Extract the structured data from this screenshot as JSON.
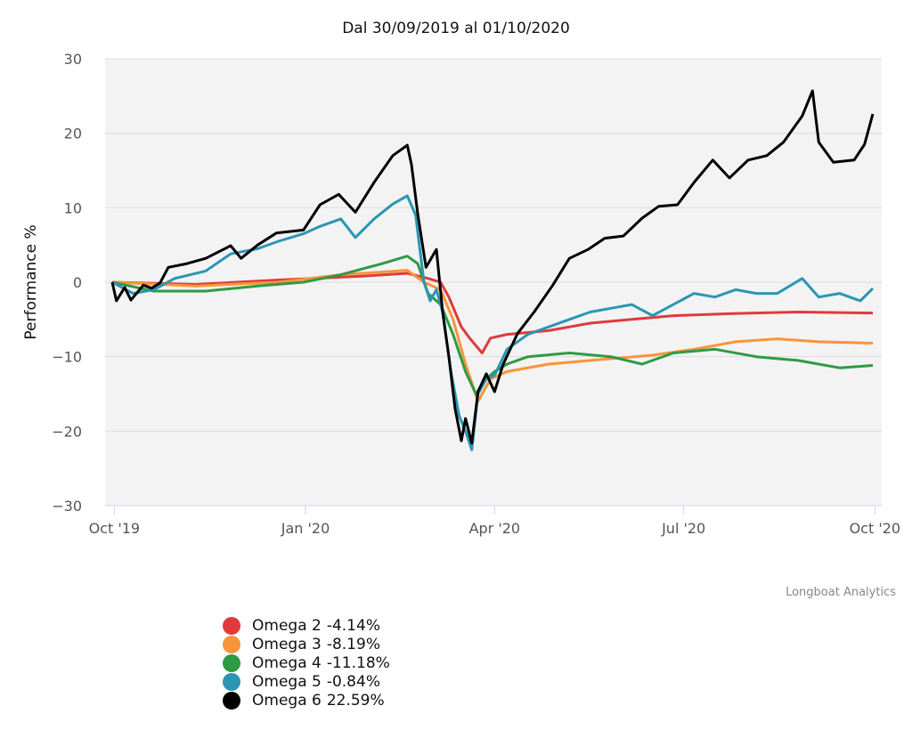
{
  "chart_data": {
    "type": "line",
    "title": "Dal 30/09/2019 al 01/10/2020",
    "xlabel": "",
    "ylabel": "Performance %",
    "x_unit": "days since 30/09/2019",
    "xlim": [
      0,
      367
    ],
    "ylim": [
      -30,
      30
    ],
    "yticks": [
      30,
      20,
      10,
      0,
      -10,
      -20,
      -30
    ],
    "ytick_labels": [
      "30",
      "20",
      "10",
      "0",
      "−10",
      "−20",
      "−30"
    ],
    "xticks": [
      {
        "day": 1,
        "label": "Oct '19"
      },
      {
        "day": 93,
        "label": "Jan '20"
      },
      {
        "day": 184,
        "label": "Apr '20"
      },
      {
        "day": 275,
        "label": "Jul '20"
      },
      {
        "day": 367,
        "label": "Oct '20"
      }
    ],
    "grid": true,
    "legend_position": "bottom-left",
    "credit": "Longboat Analytics",
    "series": [
      {
        "name": "Omega 2",
        "final": "-4.14%",
        "color": "#e03a3e",
        "points": [
          [
            0,
            0
          ],
          [
            40,
            -0.3
          ],
          [
            80,
            0.3
          ],
          [
            120,
            0.8
          ],
          [
            142,
            1.2
          ],
          [
            152,
            0.5
          ],
          [
            158,
            0
          ],
          [
            162,
            -2
          ],
          [
            168,
            -6
          ],
          [
            172,
            -7.5
          ],
          [
            178,
            -9.5
          ],
          [
            182,
            -7.5
          ],
          [
            190,
            -7
          ],
          [
            210,
            -6.5
          ],
          [
            230,
            -5.5
          ],
          [
            250,
            -5
          ],
          [
            270,
            -4.5
          ],
          [
            300,
            -4.2
          ],
          [
            330,
            -4
          ],
          [
            366,
            -4.14
          ]
        ]
      },
      {
        "name": "Omega 3",
        "final": "-8.19%",
        "color": "#f7953a",
        "points": [
          [
            0,
            0
          ],
          [
            40,
            -0.5
          ],
          [
            80,
            0
          ],
          [
            110,
            1
          ],
          [
            142,
            1.6
          ],
          [
            150,
            0
          ],
          [
            158,
            -1
          ],
          [
            164,
            -5
          ],
          [
            170,
            -11
          ],
          [
            176,
            -16
          ],
          [
            182,
            -13
          ],
          [
            190,
            -12
          ],
          [
            210,
            -11
          ],
          [
            230,
            -10.5
          ],
          [
            260,
            -9.8
          ],
          [
            280,
            -9
          ],
          [
            300,
            -8
          ],
          [
            320,
            -7.6
          ],
          [
            340,
            -8
          ],
          [
            366,
            -8.19
          ]
        ]
      },
      {
        "name": "Omega 4",
        "final": "-11.18%",
        "color": "#2e9a44",
        "points": [
          [
            0,
            0
          ],
          [
            20,
            -1.2
          ],
          [
            45,
            -1.2
          ],
          [
            70,
            -0.5
          ],
          [
            92,
            0
          ],
          [
            110,
            1
          ],
          [
            130,
            2.5
          ],
          [
            142,
            3.5
          ],
          [
            147,
            2.5
          ],
          [
            152,
            -1.5
          ],
          [
            158,
            -3
          ],
          [
            164,
            -7
          ],
          [
            170,
            -12
          ],
          [
            175,
            -15
          ],
          [
            180,
            -13
          ],
          [
            184,
            -12
          ],
          [
            190,
            -11
          ],
          [
            200,
            -10
          ],
          [
            220,
            -9.5
          ],
          [
            240,
            -10
          ],
          [
            255,
            -11
          ],
          [
            270,
            -9.5
          ],
          [
            290,
            -9
          ],
          [
            310,
            -10
          ],
          [
            330,
            -10.5
          ],
          [
            350,
            -11.5
          ],
          [
            366,
            -11.18
          ]
        ]
      },
      {
        "name": "Omega 5",
        "final": "-0.84%",
        "color": "#2a96b4",
        "points": [
          [
            0,
            0
          ],
          [
            10,
            -1.5
          ],
          [
            20,
            -1
          ],
          [
            30,
            0.5
          ],
          [
            45,
            1.5
          ],
          [
            57,
            3.8
          ],
          [
            70,
            4.5
          ],
          [
            80,
            5.5
          ],
          [
            92,
            6.5
          ],
          [
            100,
            7.5
          ],
          [
            110,
            8.5
          ],
          [
            117,
            6
          ],
          [
            126,
            8.5
          ],
          [
            135,
            10.5
          ],
          [
            142,
            11.6
          ],
          [
            146,
            9
          ],
          [
            150,
            0
          ],
          [
            153,
            -2.5
          ],
          [
            156,
            -1
          ],
          [
            159,
            -4
          ],
          [
            163,
            -12
          ],
          [
            167,
            -18
          ],
          [
            170,
            -20
          ],
          [
            173,
            -22.5
          ],
          [
            176,
            -15
          ],
          [
            180,
            -13
          ],
          [
            184,
            -12.5
          ],
          [
            190,
            -9
          ],
          [
            200,
            -7
          ],
          [
            210,
            -6
          ],
          [
            220,
            -5
          ],
          [
            230,
            -4
          ],
          [
            240,
            -3.5
          ],
          [
            250,
            -3
          ],
          [
            260,
            -4.5
          ],
          [
            270,
            -3
          ],
          [
            280,
            -1.5
          ],
          [
            290,
            -2
          ],
          [
            300,
            -1
          ],
          [
            310,
            -1.5
          ],
          [
            320,
            -1.5
          ],
          [
            332,
            0.5
          ],
          [
            340,
            -2
          ],
          [
            350,
            -1.5
          ],
          [
            360,
            -2.5
          ],
          [
            366,
            -0.84
          ]
        ]
      },
      {
        "name": "Omega 6",
        "final": "22.59%",
        "color": "#000000",
        "points": [
          [
            0,
            0
          ],
          [
            2,
            -2.5
          ],
          [
            6,
            -0.7
          ],
          [
            9,
            -2.4
          ],
          [
            15,
            -0.4
          ],
          [
            19,
            -0.8
          ],
          [
            23,
            -0.1
          ],
          [
            27,
            2
          ],
          [
            36,
            2.5
          ],
          [
            45,
            3.2
          ],
          [
            57,
            4.9
          ],
          [
            62,
            3.2
          ],
          [
            70,
            5
          ],
          [
            79,
            6.6
          ],
          [
            92,
            7
          ],
          [
            100,
            10.4
          ],
          [
            109,
            11.8
          ],
          [
            117,
            9.4
          ],
          [
            126,
            13.4
          ],
          [
            135,
            17
          ],
          [
            142,
            18.4
          ],
          [
            144,
            15.8
          ],
          [
            147,
            9.2
          ],
          [
            151,
            2
          ],
          [
            156,
            4.4
          ],
          [
            159,
            -4
          ],
          [
            162,
            -10
          ],
          [
            165,
            -17
          ],
          [
            168,
            -21.3
          ],
          [
            170,
            -18.3
          ],
          [
            173,
            -21.6
          ],
          [
            176,
            -14.7
          ],
          [
            180,
            -12.3
          ],
          [
            184,
            -14.7
          ],
          [
            188,
            -11.1
          ],
          [
            195,
            -6.9
          ],
          [
            203,
            -4
          ],
          [
            212,
            -0.4
          ],
          [
            220,
            3.2
          ],
          [
            229,
            4.4
          ],
          [
            237,
            5.9
          ],
          [
            246,
            6.2
          ],
          [
            255,
            8.6
          ],
          [
            263,
            10.2
          ],
          [
            272,
            10.4
          ],
          [
            280,
            13.4
          ],
          [
            289,
            16.4
          ],
          [
            297,
            14
          ],
          [
            306,
            16.4
          ],
          [
            315,
            17
          ],
          [
            323,
            18.8
          ],
          [
            332,
            22.3
          ],
          [
            337,
            25.7
          ],
          [
            340,
            18.8
          ],
          [
            347,
            16.1
          ],
          [
            357,
            16.4
          ],
          [
            362,
            18.5
          ],
          [
            366,
            22.59
          ]
        ]
      }
    ]
  }
}
